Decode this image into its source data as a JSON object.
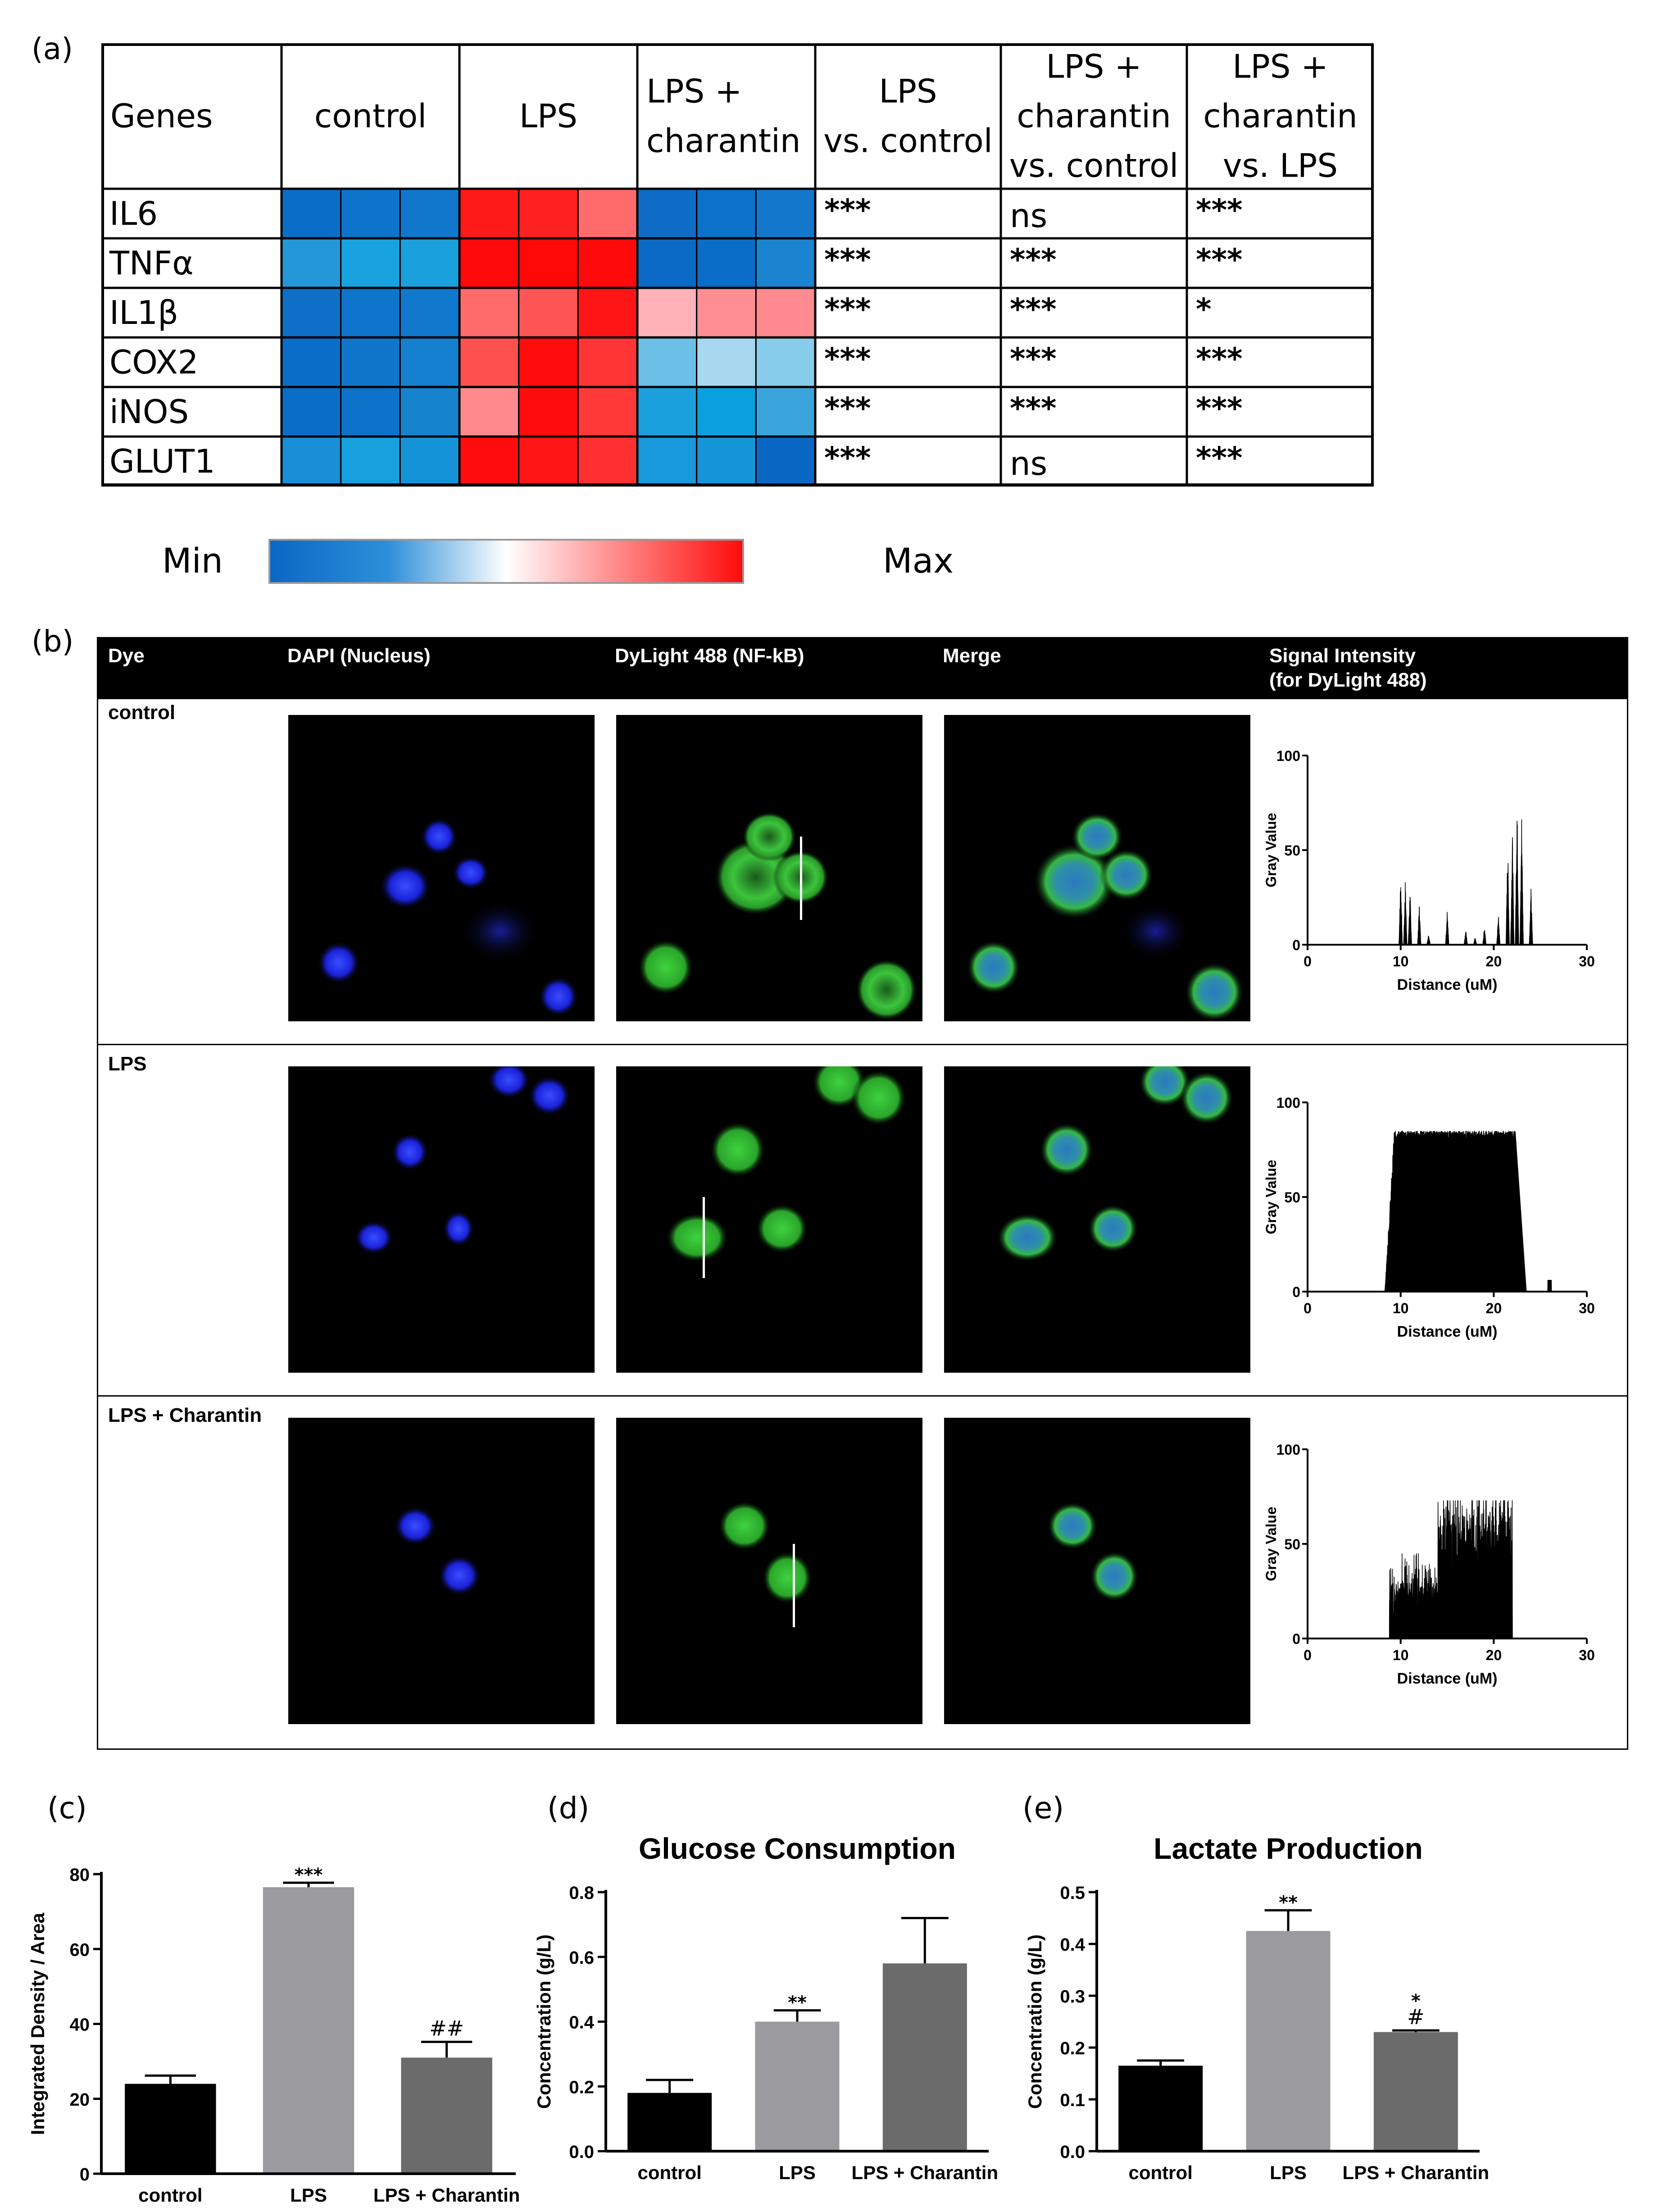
{
  "panel_labels": {
    "a": "(a)",
    "b": "(b)",
    "c": "(c)",
    "d": "(d)",
    "e": "(e)"
  },
  "panel_a": {
    "headers": [
      "Genes",
      "control",
      "LPS",
      "LPS +\ncharantin",
      "LPS\nvs. control",
      "LPS +\ncharantin\nvs. control",
      "LPS +\ncharantin\nvs. LPS"
    ],
    "rows": [
      {
        "gene": "IL6",
        "colors": [
          "#0a6ec8",
          "#0e73cb",
          "#1177cd",
          "#ff1a1a",
          "#ff2020",
          "#ff6b6b",
          "#0f6cc6",
          "#0b72ca",
          "#1378cc"
        ],
        "sig": [
          "***",
          "ns",
          "***"
        ]
      },
      {
        "gene": "TNFα",
        "colors": [
          "#2497d9",
          "#18a2df",
          "#1aa0dd",
          "#ff0a0a",
          "#ff0808",
          "#ff0a0a",
          "#0a6ac6",
          "#0a6dc8",
          "#1a84d0"
        ],
        "sig": [
          "***",
          "***",
          "***"
        ]
      },
      {
        "gene": "IL1β",
        "colors": [
          "#0d6fc8",
          "#0f74cb",
          "#1078cd",
          "#ff6a6a",
          "#ff5555",
          "#ff1515",
          "#ffb3b8",
          "#ff8e93",
          "#ff8a8f"
        ],
        "sig": [
          "***",
          "***",
          "*"
        ]
      },
      {
        "gene": "COX2",
        "colors": [
          "#0a6ec8",
          "#1076cb",
          "#1480cf",
          "#ff5050",
          "#ff0d0d",
          "#ff3535",
          "#6cc0e8",
          "#a8d8ef",
          "#88ccec"
        ],
        "sig": [
          "***",
          "***",
          "***"
        ]
      },
      {
        "gene": "iNOS",
        "colors": [
          "#0a6ec8",
          "#0d72ca",
          "#1683cf",
          "#ff8a8e",
          "#ff0d0d",
          "#ff3838",
          "#1aa0dd",
          "#0aa0df",
          "#3aa5dc"
        ],
        "sig": [
          "***",
          "***",
          "***"
        ]
      },
      {
        "gene": "GLUT1",
        "colors": [
          "#188fd6",
          "#16a0de",
          "#1593d8",
          "#ff0d0d",
          "#ff1515",
          "#ff3030",
          "#1899db",
          "#1795d9",
          "#0a68c4"
        ],
        "sig": [
          "***",
          "ns",
          "***"
        ]
      }
    ],
    "colorbar": {
      "min_label": "Min",
      "max_label": "Max"
    }
  },
  "panel_b": {
    "headers": {
      "dye": "Dye",
      "dapi": "DAPI (Nucleus)",
      "dylight": "DyLight 488 (NF-kB)",
      "merge": "Merge",
      "signal": "Signal Intensity\n(for DyLight 488)"
    },
    "rows": [
      {
        "label": "control",
        "profile": {
          "x_ticks": [
            "0",
            "10",
            "20",
            "30"
          ],
          "y_ticks": [
            "0",
            "50",
            "100"
          ],
          "xlabel": "Distance (uM)",
          "ylabel": "Gray Value"
        }
      },
      {
        "label": "LPS",
        "profile": {
          "x_ticks": [
            "0",
            "10",
            "20",
            "30"
          ],
          "y_ticks": [
            "0",
            "50",
            "100"
          ],
          "xlabel": "Distance (uM)",
          "ylabel": "Gray Value"
        }
      },
      {
        "label": "LPS + Charantin",
        "profile": {
          "x_ticks": [
            "0",
            "10",
            "20",
            "30"
          ],
          "y_ticks": [
            "0",
            "50",
            "100"
          ],
          "xlabel": "Distance (uM)",
          "ylabel": "Gray Value"
        }
      }
    ]
  },
  "chart_data": [
    {
      "type": "bar",
      "panel": "c",
      "title": "",
      "ylabel": "Integrated Density / Area",
      "xlabel": "",
      "categories": [
        "control",
        "LPS",
        "LPS + Charantin"
      ],
      "values": [
        24,
        76.5,
        31
      ],
      "errors": [
        2.2,
        1.2,
        4.2
      ],
      "annotations": [
        "",
        "***",
        "##"
      ],
      "colors": [
        "#000000",
        "#9a9a9f",
        "#6b6b6b"
      ],
      "ylim": [
        0,
        80
      ],
      "y_ticks": [
        0,
        20,
        40,
        60,
        80
      ]
    },
    {
      "type": "bar",
      "panel": "d",
      "title": "Glucose Consumption",
      "ylabel": "Concentration (g/L)",
      "xlabel": "",
      "categories": [
        "control",
        "LPS",
        "LPS + Charantin"
      ],
      "values": [
        0.18,
        0.4,
        0.58
      ],
      "errors": [
        0.04,
        0.035,
        0.14
      ],
      "annotations": [
        "",
        "**",
        ""
      ],
      "colors": [
        "#000000",
        "#9a9a9f",
        "#6b6b6b"
      ],
      "ylim": [
        0,
        0.8
      ],
      "y_ticks": [
        0.0,
        0.2,
        0.4,
        0.6,
        0.8
      ]
    },
    {
      "type": "bar",
      "panel": "e",
      "title": "Lactate Production",
      "ylabel": "Concentration (g/L)",
      "xlabel": "",
      "categories": [
        "control",
        "LPS",
        "LPS + Charantin"
      ],
      "values": [
        0.165,
        0.425,
        0.23
      ],
      "errors": [
        0.01,
        0.04,
        0.003
      ],
      "annotations": [
        "",
        "**",
        "*\n#"
      ],
      "colors": [
        "#000000",
        "#9a9a9f",
        "#6b6b6b"
      ],
      "ylim": [
        0,
        0.5
      ],
      "y_ticks": [
        0.0,
        0.1,
        0.2,
        0.3,
        0.4,
        0.5
      ]
    }
  ]
}
